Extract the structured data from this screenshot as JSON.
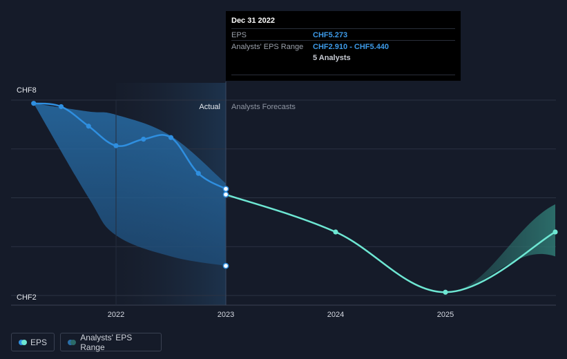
{
  "colors": {
    "background": "#151b29",
    "actual_line": "#2f8fe0",
    "forecast_line": "#6ee7d3",
    "range_fill_actual": "#1f5a8c",
    "range_fill_forecast": "#2b6a68",
    "tooltip_value": "#3d9ae8"
  },
  "labels": {
    "actual": "Actual",
    "forecasts": "Analysts Forecasts"
  },
  "tooltip": {
    "date": "Dec 31 2022",
    "eps_label": "EPS",
    "eps_value": "CHF5.273",
    "range_label": "Analysts' EPS Range",
    "range_value": "CHF2.910 - CHF5.440",
    "analysts": "5 Analysts"
  },
  "legend": {
    "eps": "EPS",
    "range": "Analysts' EPS Range"
  },
  "chart_data": {
    "type": "line",
    "title": "",
    "xlabel": "",
    "ylabel": "",
    "ylim": [
      2,
      8
    ],
    "y_ticks": [
      "CHF2",
      "CHF8"
    ],
    "x_ticks": [
      "2022",
      "2023",
      "2024",
      "2025"
    ],
    "series": [
      {
        "name": "EPS",
        "kind": "actual",
        "x": [
          2021.25,
          2021.5,
          2021.75,
          2022.0,
          2022.25,
          2022.5,
          2022.75,
          2023.0
        ],
        "y": [
          7.9,
          7.8,
          7.2,
          6.6,
          6.8,
          6.85,
          5.75,
          5.273
        ]
      },
      {
        "name": "EPS",
        "kind": "forecast",
        "x": [
          2023.0,
          2024.0,
          2025.0,
          2026.0
        ],
        "y": [
          5.1,
          3.95,
          2.1,
          3.95
        ]
      }
    ],
    "range": {
      "name": "Analysts' EPS Range",
      "actual": {
        "x": [
          2021.25,
          2021.75,
          2022.0,
          2022.5,
          2023.0
        ],
        "upper": [
          7.9,
          7.65,
          7.55,
          6.9,
          5.44
        ],
        "lower": [
          7.9,
          5.0,
          3.85,
          3.2,
          2.91
        ]
      },
      "forecast": {
        "x": [
          2025.0,
          2026.0
        ],
        "upper": [
          2.1,
          4.8
        ],
        "lower": [
          2.1,
          3.2
        ]
      }
    }
  }
}
